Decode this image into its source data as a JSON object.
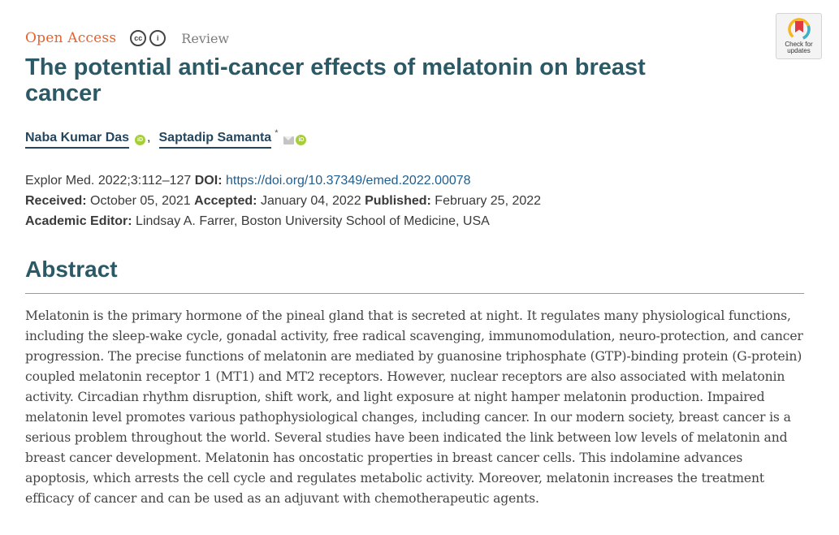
{
  "header": {
    "access_label": "Open Access",
    "cc_icon_text": "cc",
    "by_icon_text": "i",
    "article_type": "Review"
  },
  "crossmark": {
    "line1": "Check for",
    "line2": "updates"
  },
  "title": "The potential anti-cancer effects of melatonin on breast cancer",
  "authors": [
    {
      "name": "Naba Kumar Das",
      "orcid_text": "iD"
    },
    {
      "name": "Saptadip Samanta",
      "corresponding_mark": "*",
      "orcid_text": "iD"
    }
  ],
  "author_separator": ",",
  "meta": {
    "citation": "Explor Med. 2022;3:112–127",
    "doi_label": "DOI:",
    "doi_link": "https://doi.org/10.37349/emed.2022.00078",
    "received_label": "Received:",
    "received_date": "October 05, 2021",
    "accepted_label": "Accepted:",
    "accepted_date": "January 04, 2022",
    "published_label": "Published:",
    "published_date": "February 25, 2022",
    "editor_label": "Academic Editor:",
    "editor_value": "Lindsay A. Farrer, Boston University School of Medicine, USA"
  },
  "abstract": {
    "heading": "Abstract",
    "body": "Melatonin is the primary hormone of the pineal gland that is secreted at night. It regulates many physiological functions, including the sleep-wake cycle, gonadal activity, free radical scavenging, immunomodulation, neuro-protection, and cancer progression. The precise functions of melatonin are mediated by guanosine triphosphate (GTP)-binding protein (G-protein) coupled melatonin receptor 1 (MT1) and MT2 receptors. However, nuclear receptors are also associated with melatonin activity. Circadian rhythm disruption, shift work, and light exposure at night hamper melatonin production. Impaired melatonin level promotes various pathophysiological changes, including cancer. In our modern society, breast cancer is a serious problem throughout the world. Several studies have been indicated the link between low levels of melatonin and breast cancer development. Melatonin has oncostatic properties in breast cancer cells. This indolamine advances apoptosis, which arrests the cell cycle and regulates metabolic activity. Moreover, melatonin increases the treatment efficacy of cancer and can be used as an adjuvant with chemotherapeutic agents."
  },
  "colors": {
    "open_access": "#e8622c",
    "title": "#2b5966",
    "author": "#24465e",
    "link": "#1f5e8e",
    "orcid": "#a6ce39",
    "crossmark_red": "#e03a3e",
    "crossmark_yellow": "#f6b81c"
  },
  "icons": {
    "cc": "creative-commons-icon",
    "by": "attribution-icon",
    "orcid": "orcid-icon",
    "email": "email-icon",
    "crossmark": "crossmark-icon"
  }
}
